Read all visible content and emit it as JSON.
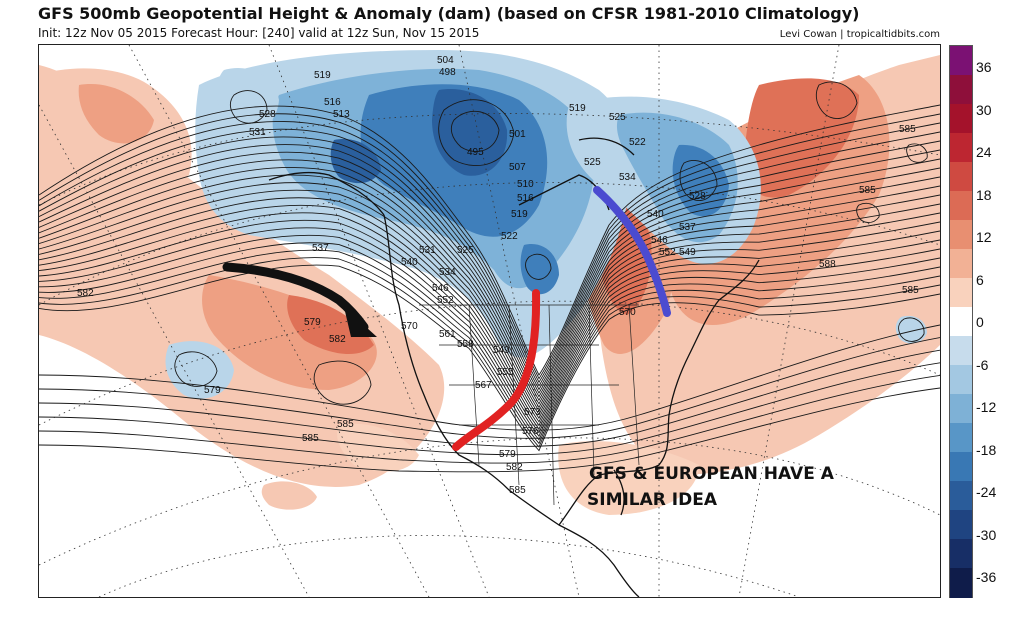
{
  "header": {
    "title": "GFS 500mb Geopotential Height & Anomaly (dam) (based on CFSR 1981-2010 Climatology)",
    "subtitle": "Init: 12z Nov 05 2015   Forecast Hour: [240]   valid at 12z Sun, Nov 15 2015",
    "credit": "Levi Cowan | tropicaltidbits.com"
  },
  "annotation": {
    "line1": "GFS & EUROPEAN HAVE A",
    "line2": "SIMILAR IDEA"
  },
  "contour_labels": [
    {
      "text": "519"
    },
    {
      "text": "504"
    },
    {
      "text": "498"
    },
    {
      "text": "516"
    },
    {
      "text": "513"
    },
    {
      "text": "528"
    },
    {
      "text": "531"
    },
    {
      "text": "495"
    },
    {
      "text": "501"
    },
    {
      "text": "507"
    },
    {
      "text": "510"
    },
    {
      "text": "516"
    },
    {
      "text": "519"
    },
    {
      "text": "522"
    },
    {
      "text": "537"
    },
    {
      "text": "531"
    },
    {
      "text": "525"
    },
    {
      "text": "540"
    },
    {
      "text": "534"
    },
    {
      "text": "546"
    },
    {
      "text": "552"
    },
    {
      "text": "519"
    },
    {
      "text": "525"
    },
    {
      "text": "522"
    },
    {
      "text": "525"
    },
    {
      "text": "534"
    },
    {
      "text": "528"
    },
    {
      "text": "540"
    },
    {
      "text": "546"
    },
    {
      "text": "552"
    },
    {
      "text": "585"
    },
    {
      "text": "585"
    },
    {
      "text": "588"
    },
    {
      "text": "585"
    },
    {
      "text": "582"
    },
    {
      "text": "579"
    },
    {
      "text": "582"
    },
    {
      "text": "570"
    },
    {
      "text": "561"
    },
    {
      "text": "558"
    },
    {
      "text": "549"
    },
    {
      "text": "567"
    },
    {
      "text": "579"
    },
    {
      "text": "585"
    },
    {
      "text": "585"
    },
    {
      "text": "573"
    },
    {
      "text": "576"
    },
    {
      "text": "579"
    },
    {
      "text": "582"
    },
    {
      "text": "585"
    },
    {
      "text": "570"
    },
    {
      "text": "537"
    },
    {
      "text": "549"
    },
    {
      "text": "555"
    }
  ],
  "colorbar": {
    "ticks": [
      "36",
      "30",
      "24",
      "18",
      "12",
      "6",
      "0",
      "-6",
      "-12",
      "-18",
      "-24",
      "-30",
      "-36"
    ],
    "colors": [
      "#7b1173",
      "#8e0f3a",
      "#a4122b",
      "#bd2631",
      "#cf4a41",
      "#dc6b55",
      "#e88f71",
      "#f2b195",
      "#f9d2bd",
      "#ffffff",
      "#c7dcec",
      "#a3c8e2",
      "#7eb1d6",
      "#5896c7",
      "#3978b4",
      "#2a5c9a",
      "#1f4481",
      "#172e66",
      "#0f1c4a"
    ]
  },
  "arrows": {
    "black": "#111111",
    "red": "#e12222",
    "blue": "#4b4bd0"
  },
  "field_colors": {
    "warm_light": "#f6c8b3",
    "warm_mid": "#eea083",
    "warm_dark": "#df7157",
    "cold_light": "#b9d5e9",
    "cold_mid": "#7eb2d8",
    "cold_dark": "#3f7fbb",
    "cold_core": "#2a5f9d"
  }
}
